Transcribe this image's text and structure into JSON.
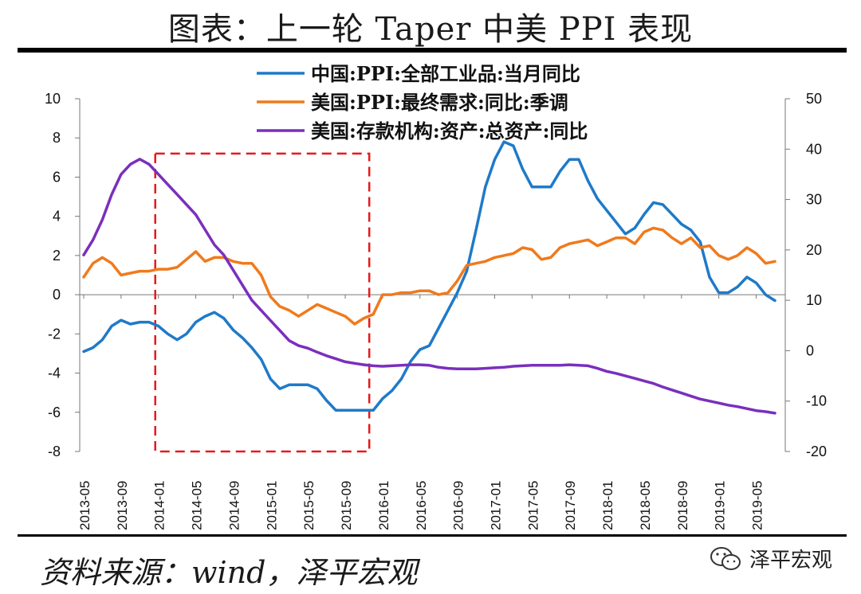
{
  "header": {
    "title": "图表：上一轮 Taper 中美 PPI 表现"
  },
  "footer": {
    "source": "资料来源：wind，泽平宏观",
    "brand": "泽平宏观"
  },
  "colors": {
    "china_ppi": "#1f7ac8",
    "us_ppi": "#f07a1c",
    "us_assets": "#7a2fbd",
    "highlight": "#e41a1c"
  },
  "chart_data": {
    "type": "line",
    "title": "上一轮 Taper 中美 PPI 表现",
    "x": [
      "2013-05",
      "2013-06",
      "2013-07",
      "2013-08",
      "2013-09",
      "2013-10",
      "2013-11",
      "2013-12",
      "2014-01",
      "2014-02",
      "2014-03",
      "2014-04",
      "2014-05",
      "2014-06",
      "2014-07",
      "2014-08",
      "2014-09",
      "2014-10",
      "2014-11",
      "2014-12",
      "2015-01",
      "2015-02",
      "2015-03",
      "2015-04",
      "2015-05",
      "2015-06",
      "2015-07",
      "2015-08",
      "2015-09",
      "2015-10",
      "2015-11",
      "2015-12",
      "2016-01",
      "2016-02",
      "2016-03",
      "2016-04",
      "2016-05",
      "2016-06",
      "2016-07",
      "2016-08",
      "2016-09",
      "2016-10",
      "2016-11",
      "2016-12",
      "2017-01",
      "2017-02",
      "2017-03",
      "2017-04",
      "2017-05",
      "2017-06",
      "2017-07",
      "2017-08",
      "2017-09",
      "2017-10",
      "2017-11",
      "2017-12",
      "2018-01",
      "2018-02",
      "2018-03",
      "2018-04",
      "2018-05",
      "2018-06",
      "2018-07",
      "2018-08",
      "2018-09",
      "2018-10",
      "2018-11",
      "2018-12",
      "2019-01",
      "2019-02",
      "2019-03",
      "2019-04",
      "2019-05",
      "2019-06",
      "2019-07"
    ],
    "xticks": [
      "2013-05",
      "2013-09",
      "2014-01",
      "2014-05",
      "2014-09",
      "2015-01",
      "2015-05",
      "2015-09",
      "2016-01",
      "2016-05",
      "2016-09",
      "2017-01",
      "2017-05",
      "2017-09",
      "2018-01",
      "2018-05",
      "2018-09",
      "2019-01",
      "2019-05"
    ],
    "left_axis": {
      "ylim": [
        -8,
        10
      ],
      "ticks": [
        "10",
        "8",
        "6",
        "4",
        "2",
        "0",
        "-2",
        "-4",
        "-6",
        "-8"
      ]
    },
    "right_axis": {
      "ylim": [
        -20,
        50
      ],
      "ticks": [
        "50",
        "40",
        "30",
        "20",
        "10",
        "0",
        "-10",
        "-20"
      ]
    },
    "series": [
      {
        "name": "中国:PPI:全部工业品:当月同比",
        "axis": "left",
        "color": "#1f7ac8",
        "values": [
          -2.9,
          -2.7,
          -2.3,
          -1.6,
          -1.3,
          -1.5,
          -1.4,
          -1.4,
          -1.6,
          -2.0,
          -2.3,
          -2.0,
          -1.4,
          -1.1,
          -0.9,
          -1.2,
          -1.8,
          -2.2,
          -2.7,
          -3.3,
          -4.3,
          -4.8,
          -4.6,
          -4.6,
          -4.6,
          -4.8,
          -5.4,
          -5.9,
          -5.9,
          -5.9,
          -5.9,
          -5.9,
          -5.3,
          -4.9,
          -4.3,
          -3.4,
          -2.8,
          -2.6,
          -1.7,
          -0.8,
          0.1,
          1.2,
          3.3,
          5.5,
          6.9,
          7.8,
          7.6,
          6.4,
          5.5,
          5.5,
          5.5,
          6.3,
          6.9,
          6.9,
          5.8,
          4.9,
          4.3,
          3.7,
          3.1,
          3.4,
          4.1,
          4.7,
          4.6,
          4.1,
          3.6,
          3.3,
          2.7,
          0.9,
          0.1,
          0.1,
          0.4,
          0.9,
          0.6,
          0.0,
          -0.3
        ]
      },
      {
        "name": "美国:PPI:最终需求:同比:季调",
        "axis": "left",
        "color": "#f07a1c",
        "values": [
          0.9,
          1.6,
          1.9,
          1.6,
          1.0,
          1.1,
          1.2,
          1.2,
          1.3,
          1.3,
          1.4,
          1.8,
          2.2,
          1.7,
          1.9,
          1.9,
          1.7,
          1.6,
          1.6,
          1.0,
          -0.1,
          -0.6,
          -0.8,
          -1.1,
          -0.8,
          -0.5,
          -0.7,
          -0.9,
          -1.1,
          -1.5,
          -1.2,
          -1.0,
          0.0,
          0.0,
          0.1,
          0.1,
          0.2,
          0.2,
          0.0,
          0.1,
          0.7,
          1.5,
          1.6,
          1.7,
          1.9,
          2.0,
          2.1,
          2.4,
          2.3,
          1.8,
          1.9,
          2.4,
          2.6,
          2.7,
          2.8,
          2.5,
          2.7,
          2.9,
          2.9,
          2.6,
          3.2,
          3.4,
          3.3,
          2.9,
          2.6,
          2.9,
          2.4,
          2.5,
          2.0,
          1.8,
          2.0,
          2.4,
          2.1,
          1.6,
          1.7
        ]
      },
      {
        "name": "美国:存款机构:资产:总资产:同比",
        "axis": "right",
        "color": "#7a2fbd",
        "values": [
          19,
          22,
          26,
          31,
          35,
          37,
          38,
          37,
          35,
          33,
          31,
          29,
          27,
          24,
          21,
          19,
          16,
          13,
          10,
          8,
          6,
          4,
          2,
          1,
          0.5,
          -0.3,
          -1,
          -1.6,
          -2.2,
          -2.5,
          -2.8,
          -3.0,
          -3.1,
          -3.0,
          -2.9,
          -2.8,
          -2.8,
          -2.9,
          -3.3,
          -3.5,
          -3.6,
          -3.6,
          -3.6,
          -3.5,
          -3.4,
          -3.3,
          -3.1,
          -3.0,
          -2.9,
          -2.9,
          -2.9,
          -2.9,
          -2.8,
          -2.9,
          -3.0,
          -3.5,
          -4.1,
          -4.5,
          -5.0,
          -5.5,
          -6.0,
          -6.5,
          -7.2,
          -7.8,
          -8.4,
          -9.0,
          -9.6,
          -10.0,
          -10.4,
          -10.8,
          -11.1,
          -11.5,
          -11.9,
          -12.1,
          -12.4
        ]
      }
    ],
    "highlight_box": {
      "x_start": "2014-01",
      "x_end": "2015-12",
      "y_top": 7.2,
      "y_bottom": -8
    }
  }
}
